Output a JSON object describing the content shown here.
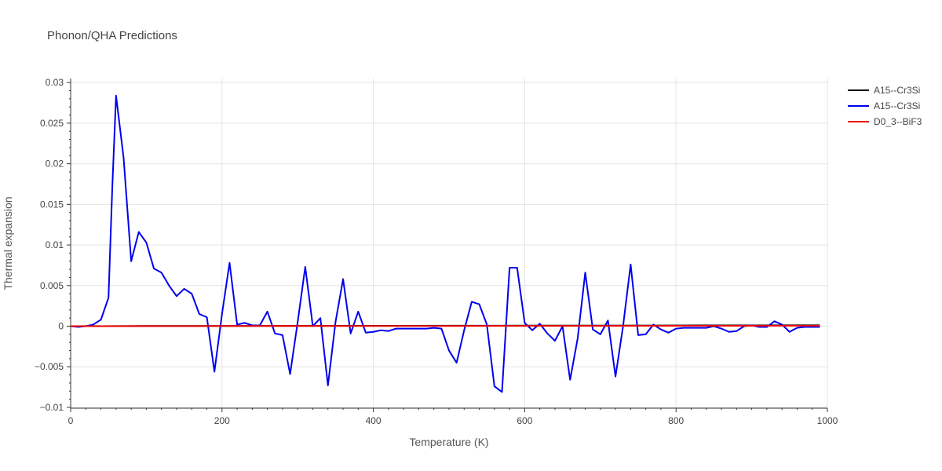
{
  "chart_data": {
    "type": "line",
    "title": "Phonon/QHA Predictions",
    "xlabel": "Temperature (K)",
    "ylabel": "Thermal expansion",
    "xlim": [
      0,
      1000
    ],
    "ylim": [
      -0.0101,
      0.0305
    ],
    "x_ticks": [
      0,
      200,
      400,
      600,
      800,
      1000
    ],
    "x_tick_labels": [
      "0",
      "200",
      "400",
      "600",
      "800",
      "1000"
    ],
    "y_ticks": [
      -0.01,
      -0.005,
      0,
      0.005,
      0.01,
      0.015,
      0.02,
      0.025,
      0.03
    ],
    "y_tick_labels": [
      "−0.01",
      "−0.005",
      "0",
      "0.005",
      "0.01",
      "0.015",
      "0.02",
      "0.025",
      "0.03"
    ],
    "grid": true,
    "legend_position": "top-right",
    "series": [
      {
        "name": "A15--Cr3Si",
        "color": "#000000",
        "x": [
          0,
          100,
          200,
          300,
          400,
          500,
          600,
          700,
          800,
          900,
          990
        ],
        "y": [
          0.0,
          2e-05,
          3e-05,
          4e-05,
          5e-05,
          6e-05,
          7e-05,
          8e-05,
          9e-05,
          0.0001,
          0.00011
        ]
      },
      {
        "name": "A15--Cr3Si",
        "color": "#0000ee",
        "x": [
          0,
          10,
          20,
          30,
          40,
          50,
          55,
          60,
          70,
          80,
          90,
          100,
          110,
          120,
          130,
          140,
          150,
          160,
          170,
          180,
          190,
          200,
          210,
          220,
          230,
          240,
          250,
          260,
          270,
          280,
          290,
          300,
          310,
          320,
          330,
          340,
          350,
          360,
          370,
          380,
          390,
          400,
          410,
          420,
          430,
          440,
          450,
          460,
          470,
          480,
          490,
          500,
          510,
          520,
          530,
          540,
          550,
          560,
          570,
          580,
          590,
          600,
          610,
          620,
          630,
          640,
          650,
          660,
          670,
          680,
          690,
          700,
          710,
          720,
          730,
          740,
          750,
          760,
          770,
          780,
          790,
          800,
          810,
          820,
          830,
          840,
          850,
          860,
          870,
          880,
          890,
          900,
          910,
          920,
          930,
          940,
          950,
          960,
          970,
          980,
          990
        ],
        "y": [
          0.0,
          -0.0001,
          0.0,
          0.0002,
          0.0008,
          0.0035,
          0.017,
          0.0284,
          0.0207,
          0.008,
          0.0116,
          0.0103,
          0.0071,
          0.0066,
          0.005,
          0.0037,
          0.0046,
          0.004,
          0.0015,
          0.0011,
          -0.0056,
          0.0015,
          0.0078,
          0.0002,
          0.0004,
          0.0001,
          0.0001,
          0.0018,
          -0.0009,
          -0.0011,
          -0.0059,
          0.0005,
          0.0073,
          0.0,
          0.001,
          -0.0073,
          0.0005,
          0.0058,
          -0.0009,
          0.0018,
          -0.0008,
          -0.0007,
          -0.0005,
          -0.0006,
          -0.0003,
          -0.0003,
          -0.0003,
          -0.0003,
          -0.0003,
          -0.0002,
          -0.0003,
          -0.003,
          -0.0045,
          -0.0005,
          0.003,
          0.0027,
          0.0002,
          -0.0074,
          -0.0081,
          0.0072,
          0.0072,
          0.0004,
          -0.0005,
          0.0003,
          -0.0009,
          -0.0018,
          0.0,
          -0.0066,
          -0.0015,
          0.0066,
          -0.0004,
          -0.001,
          0.0007,
          -0.0062,
          0.0,
          0.0076,
          -0.0011,
          -0.001,
          0.0002,
          -0.0004,
          -0.0008,
          -0.0003,
          -0.0002,
          -0.0002,
          -0.0002,
          -0.0002,
          0.0,
          -0.0003,
          -0.0007,
          -0.0006,
          0.0,
          0.0001,
          -0.0001,
          -0.0001,
          0.0006,
          0.0002,
          -0.0007,
          -0.0002,
          -0.0001,
          -0.0001,
          -0.0001
        ]
      },
      {
        "name": "D0_3--BiF3",
        "color": "#ee0000",
        "x": [
          0,
          100,
          200,
          300,
          400,
          500,
          600,
          700,
          800,
          900,
          990
        ],
        "y": [
          0.0,
          1e-05,
          2e-05,
          2e-05,
          3e-05,
          3e-05,
          4e-05,
          4e-05,
          5e-05,
          5e-05,
          6e-05
        ]
      }
    ]
  }
}
